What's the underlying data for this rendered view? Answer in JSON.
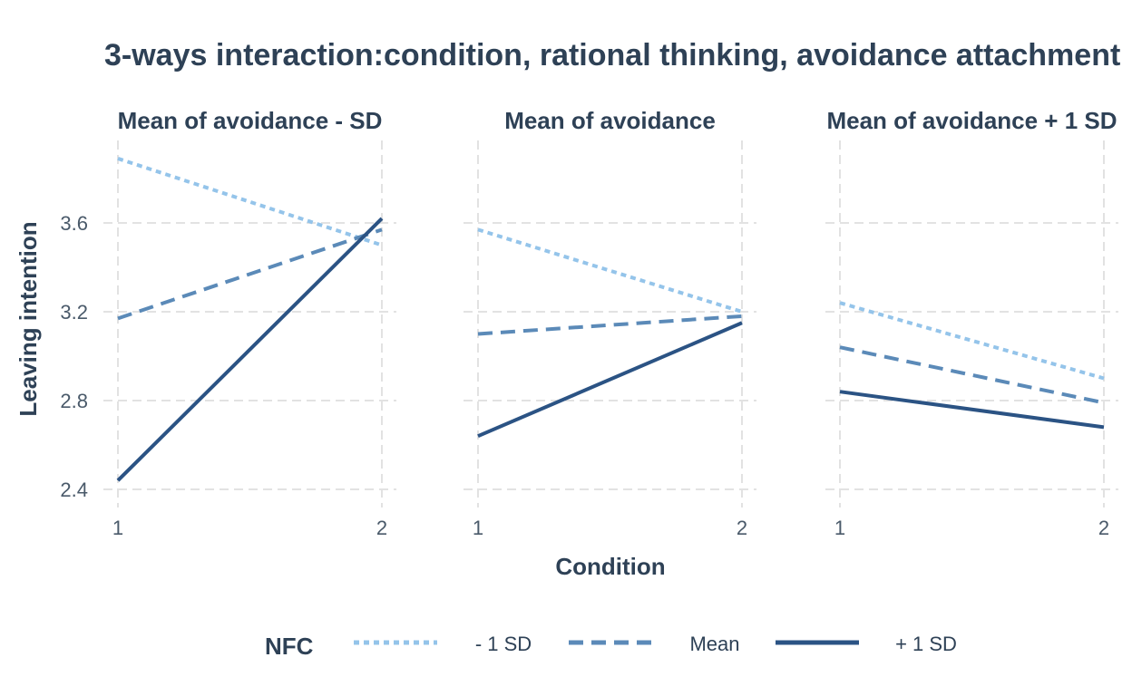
{
  "chart_data": {
    "type": "line",
    "title": "3-ways interaction:condition, rational thinking, avoidance attachment",
    "xlabel": "Condition",
    "ylabel": "Leaving intention",
    "x": [
      1,
      2
    ],
    "x_ticks": [
      "1",
      "2"
    ],
    "ylim": [
      2.36,
      3.96
    ],
    "y_ticks": [
      2.4,
      2.8,
      3.2,
      3.6
    ],
    "y_tick_labels": [
      "2.4",
      "2.8",
      "3.2",
      "3.6"
    ],
    "grid": true,
    "legend": {
      "title": "NFC",
      "position": "bottom"
    },
    "series_styles": [
      {
        "color": "#94c4ea",
        "dash": "6 5",
        "width": 4
      },
      {
        "color": "#5b8ab8",
        "dash": "16 9",
        "width": 4
      },
      {
        "color": "#2b5384",
        "dash": "",
        "width": 4
      }
    ],
    "series_names": [
      "- 1 SD",
      "Mean",
      "+ 1 SD"
    ],
    "panels": [
      {
        "title": "Mean of avoidance - SD",
        "series": [
          {
            "name": "- 1 SD",
            "values": [
              3.89,
              3.5
            ]
          },
          {
            "name": "Mean",
            "values": [
              3.17,
              3.57
            ]
          },
          {
            "name": "+ 1 SD",
            "values": [
              2.44,
              3.62
            ]
          }
        ]
      },
      {
        "title": "Mean of avoidance",
        "series": [
          {
            "name": "- 1 SD",
            "values": [
              3.57,
              3.2
            ]
          },
          {
            "name": "Mean",
            "values": [
              3.1,
              3.18
            ]
          },
          {
            "name": "+ 1 SD",
            "values": [
              2.64,
              3.15
            ]
          }
        ]
      },
      {
        "title": "Mean of avoidance + 1 SD",
        "series": [
          {
            "name": "- 1 SD",
            "values": [
              3.24,
              2.9
            ]
          },
          {
            "name": "Mean",
            "values": [
              3.04,
              2.79
            ]
          },
          {
            "name": "+ 1 SD",
            "values": [
              2.84,
              2.68
            ]
          }
        ]
      }
    ]
  }
}
